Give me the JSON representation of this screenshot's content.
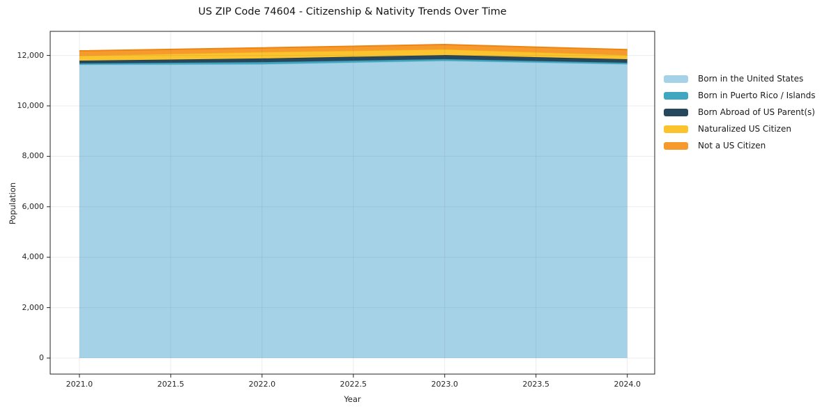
{
  "title": "US ZIP Code 74604 - Citizenship & Nativity Trends Over Time",
  "chart_data": {
    "type": "area",
    "stacked": true,
    "title": "US ZIP Code 74604 - Citizenship & Nativity Trends Over Time",
    "xlabel": "Year",
    "ylabel": "Population",
    "x": [
      2021,
      2022,
      2023,
      2024
    ],
    "series": [
      {
        "name": "Born in the United States",
        "values": [
          11630,
          11650,
          11785,
          11650
        ],
        "color": "#a6d2e8",
        "line": "#8fc3da"
      },
      {
        "name": "Born in Puerto Rico / Islands",
        "values": [
          55,
          85,
          70,
          60
        ],
        "color": "#41a7c1",
        "line": "#3395b0"
      },
      {
        "name": "Born Abroad of US Parent(s)",
        "values": [
          110,
          145,
          160,
          140
        ],
        "color": "#27485c",
        "line": "#1f3c4e"
      },
      {
        "name": "Naturalized US Citizen",
        "values": [
          195,
          255,
          230,
          165
        ],
        "color": "#fbc32d",
        "line": "#f3ae1c"
      },
      {
        "name": "Not a US Citizen",
        "values": [
          190,
          165,
          185,
          215
        ],
        "color": "#f79a2e",
        "line": "#ee8512"
      }
    ],
    "totals": [
      12180,
      12300,
      12430,
      12230
    ],
    "xlim": [
      2020.84,
      2024.15
    ],
    "ylim": [
      -635,
      12955
    ],
    "xticks": {
      "values": [
        2021.0,
        2021.5,
        2022.0,
        2022.5,
        2023.0,
        2023.5,
        2024.0
      ],
      "labels": [
        "2021.0",
        "2021.5",
        "2022.0",
        "2022.5",
        "2023.0",
        "2023.5",
        "2024.0"
      ]
    },
    "yticks": {
      "values": [
        0,
        2000,
        4000,
        6000,
        8000,
        10000,
        12000
      ],
      "labels": [
        "0",
        "2,000",
        "4,000",
        "6,000",
        "8,000",
        "10,000",
        "12,000"
      ]
    },
    "grid": true,
    "grid_color": "rgba(110,110,110,0.13)",
    "spine_color": "#222222",
    "legend_position": "right-outside",
    "background": "#ffffff"
  }
}
